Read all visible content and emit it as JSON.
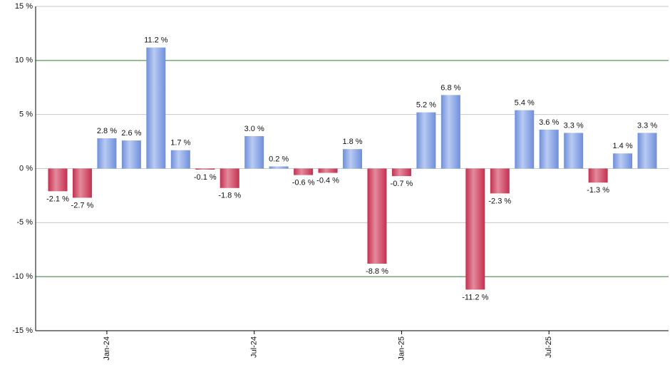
{
  "chart_data": {
    "type": "bar",
    "categories": [
      null,
      null,
      "Jan-24",
      null,
      null,
      null,
      null,
      null,
      "Jul-24",
      null,
      null,
      null,
      null,
      null,
      "Jan-25",
      null,
      null,
      null,
      null,
      null,
      "Jul-25",
      null,
      null,
      null,
      null
    ],
    "values": [
      -2.1,
      -2.7,
      2.8,
      2.6,
      11.2,
      1.7,
      -0.1,
      -1.8,
      3.0,
      0.2,
      -0.6,
      -0.4,
      1.8,
      -8.8,
      -0.7,
      5.2,
      6.8,
      -11.2,
      -2.3,
      5.4,
      3.6,
      3.3,
      -1.3,
      1.4,
      3.3
    ],
    "value_labels": [
      "-2.1 %",
      "-2.7 %",
      "2.8 %",
      "2.6 %",
      "11.2 %",
      "1.7 %",
      "-0.1 %",
      "-1.8 %",
      "3.0 %",
      "0.2 %",
      "-0.6 %",
      "-0.4 %",
      "1.8 %",
      "-8.8 %",
      "-0.7 %",
      "5.2 %",
      "6.8 %",
      "-11.2 %",
      "-2.3 %",
      "5.4 %",
      "3.6 %",
      "3.3 %",
      "-1.3 %",
      "1.4 %",
      "3.3 %"
    ],
    "positive_color": "#6f8fdb",
    "negative_color": "#c4304f",
    "ylim": [
      -15,
      15
    ],
    "yticks": [
      {
        "value": -15,
        "label": "-15 %"
      },
      {
        "value": -10,
        "label": "-10 %"
      },
      {
        "value": -5,
        "label": "-5 %"
      },
      {
        "value": 0,
        "label": "0 %"
      },
      {
        "value": 5,
        "label": "5 %"
      },
      {
        "value": 10,
        "label": "10 %"
      },
      {
        "value": 15,
        "label": "15 %"
      }
    ],
    "grid": true,
    "grid_colors": [
      "#c8c8c8",
      "#2e7d32",
      "#c8c8c8",
      "#c8c8c8",
      "#c8c8c8",
      "#2e7d32",
      "#c8c8c8"
    ]
  }
}
